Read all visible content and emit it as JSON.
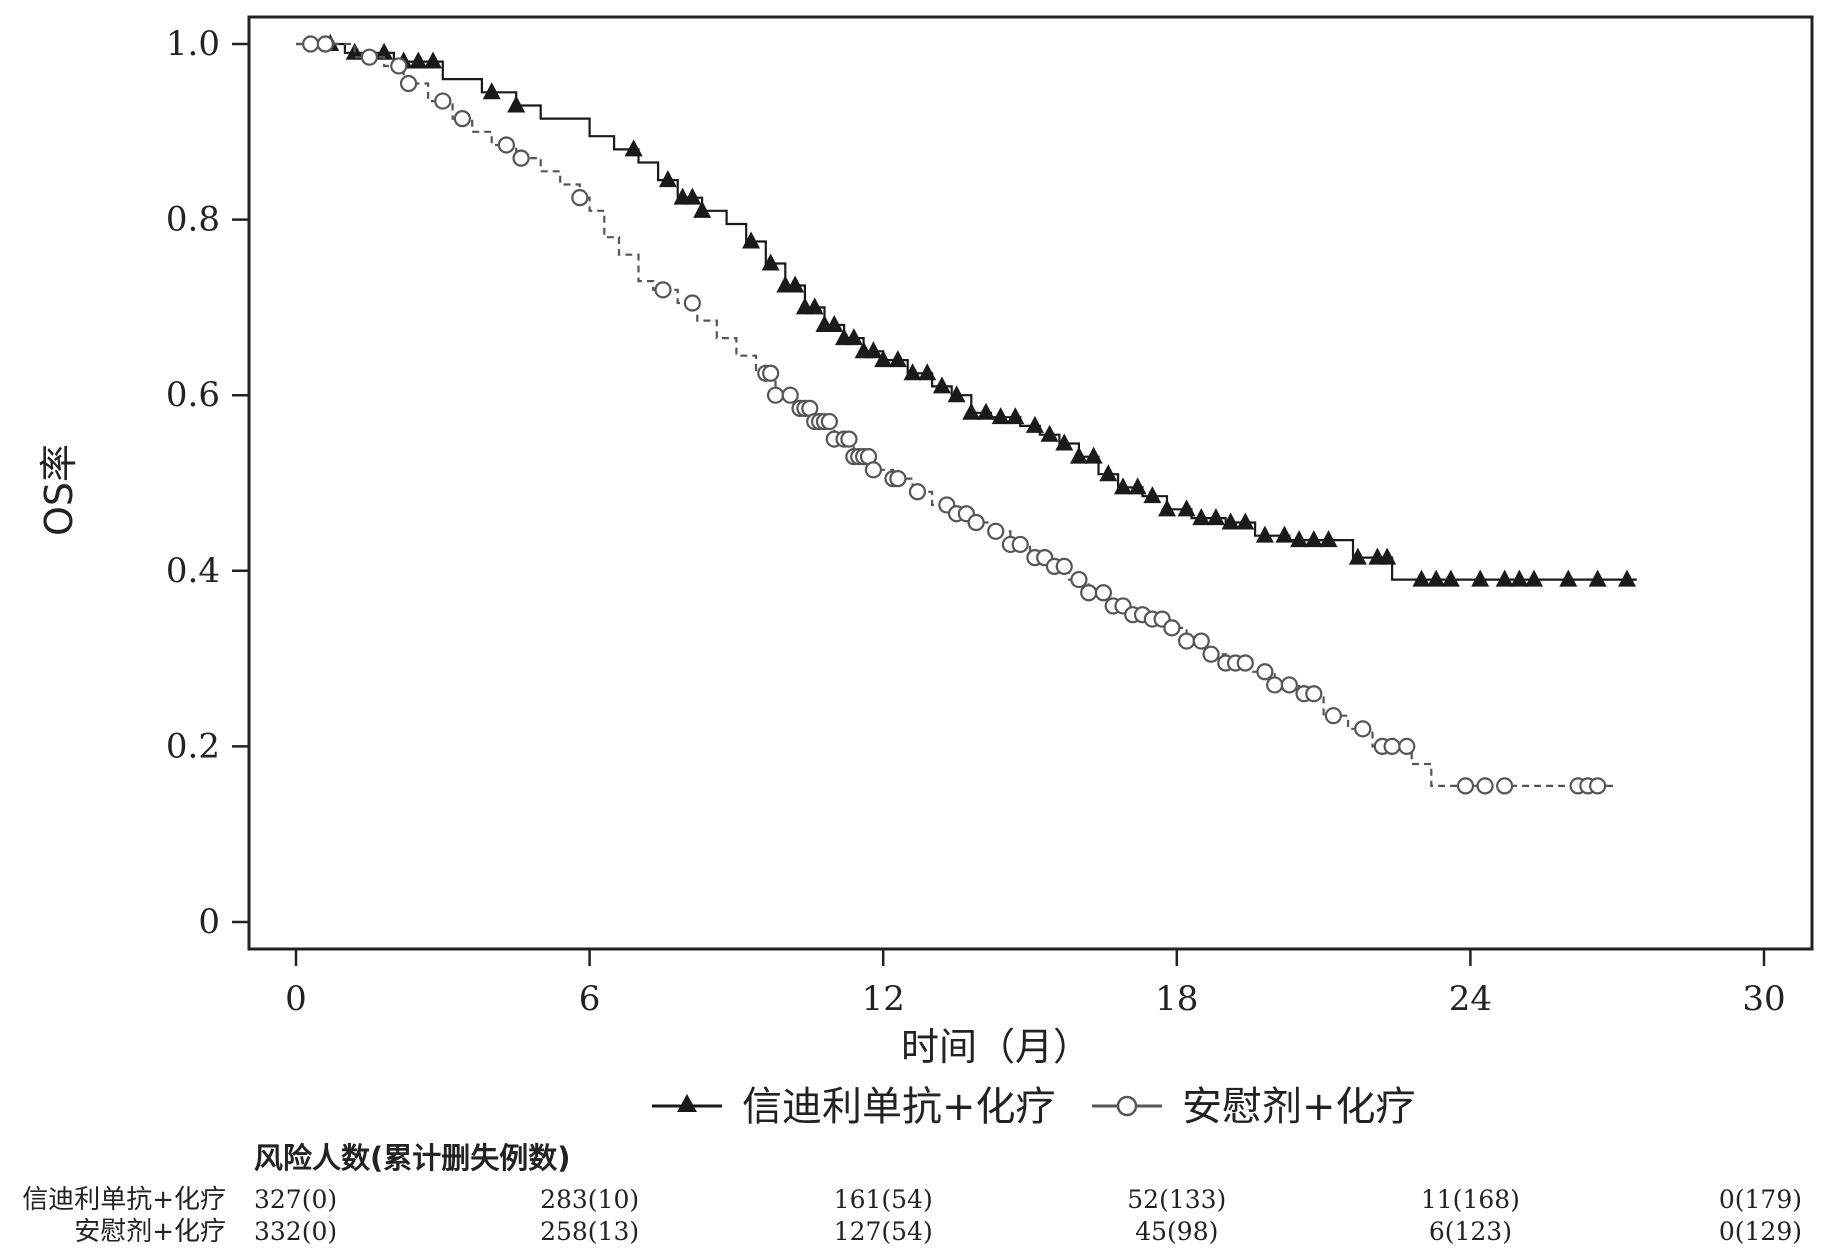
{
  "chart_data": {
    "type": "line",
    "ylabel": "OS率",
    "xlabel": "时间（月）",
    "xlim": [
      0,
      30
    ],
    "ylim": [
      0,
      1.0
    ],
    "x_ticks": [
      0,
      6,
      12,
      18,
      24,
      30
    ],
    "x_tick_labels": [
      "0",
      "6",
      "12",
      "18",
      "24",
      "30"
    ],
    "y_ticks": [
      0,
      0.2,
      0.4,
      0.6,
      0.8,
      1.0
    ],
    "y_tick_labels": [
      "0",
      "0.2",
      "0.4",
      "0.6",
      "0.8",
      "1.0"
    ],
    "grid": false,
    "legend_position": "bottom",
    "series": [
      {
        "name": "信迪利单抗+化疗",
        "color": "#1a1a1a",
        "line_style": "solid",
        "marker": "filled-triangle",
        "steps": [
          [
            0,
            1.0
          ],
          [
            1.0,
            0.99
          ],
          [
            2.0,
            0.98
          ],
          [
            3.0,
            0.96
          ],
          [
            3.8,
            0.945
          ],
          [
            4.5,
            0.93
          ],
          [
            5.0,
            0.915
          ],
          [
            6.0,
            0.895
          ],
          [
            6.5,
            0.88
          ],
          [
            7.0,
            0.865
          ],
          [
            7.4,
            0.845
          ],
          [
            7.8,
            0.825
          ],
          [
            8.3,
            0.81
          ],
          [
            8.8,
            0.795
          ],
          [
            9.2,
            0.775
          ],
          [
            9.6,
            0.75
          ],
          [
            10.0,
            0.725
          ],
          [
            10.4,
            0.7
          ],
          [
            10.8,
            0.68
          ],
          [
            11.2,
            0.665
          ],
          [
            11.6,
            0.65
          ],
          [
            12.0,
            0.64
          ],
          [
            12.5,
            0.625
          ],
          [
            13.0,
            0.61
          ],
          [
            13.4,
            0.6
          ],
          [
            13.8,
            0.58
          ],
          [
            14.2,
            0.575
          ],
          [
            14.8,
            0.565
          ],
          [
            15.2,
            0.555
          ],
          [
            15.6,
            0.545
          ],
          [
            16.0,
            0.53
          ],
          [
            16.4,
            0.51
          ],
          [
            16.8,
            0.495
          ],
          [
            17.3,
            0.485
          ],
          [
            17.8,
            0.47
          ],
          [
            18.3,
            0.46
          ],
          [
            19.0,
            0.455
          ],
          [
            19.6,
            0.44
          ],
          [
            20.3,
            0.435
          ],
          [
            21.6,
            0.415
          ],
          [
            22.4,
            0.39
          ],
          [
            27.4,
            0.39
          ]
        ],
        "censor_x": [
          0.7,
          1.2,
          1.8,
          2.2,
          2.5,
          2.8,
          4.0,
          4.5,
          6.9,
          7.6,
          7.9,
          8.1,
          8.3,
          9.3,
          9.7,
          10.0,
          10.2,
          10.4,
          10.6,
          10.8,
          11.0,
          11.2,
          11.4,
          11.6,
          11.8,
          12.0,
          12.3,
          12.6,
          12.9,
          13.2,
          13.5,
          13.8,
          14.1,
          14.4,
          14.7,
          15.1,
          15.4,
          15.7,
          16.0,
          16.3,
          16.6,
          16.9,
          17.2,
          17.5,
          17.8,
          18.2,
          18.5,
          18.8,
          19.1,
          19.4,
          19.8,
          20.2,
          20.5,
          20.8,
          21.1,
          21.7,
          22.1,
          22.3,
          23.0,
          23.3,
          23.6,
          24.2,
          24.7,
          25.0,
          25.3,
          26.0,
          26.6,
          27.2
        ]
      },
      {
        "name": "安慰剂+化疗",
        "color": "#555555",
        "line_style": "dashed",
        "marker": "open-circle",
        "steps": [
          [
            0,
            1.0
          ],
          [
            1.2,
            0.985
          ],
          [
            1.8,
            0.975
          ],
          [
            2.2,
            0.955
          ],
          [
            2.7,
            0.935
          ],
          [
            3.2,
            0.915
          ],
          [
            3.6,
            0.9
          ],
          [
            4.0,
            0.885
          ],
          [
            4.5,
            0.87
          ],
          [
            5.0,
            0.855
          ],
          [
            5.4,
            0.84
          ],
          [
            5.8,
            0.825
          ],
          [
            6.0,
            0.81
          ],
          [
            6.3,
            0.78
          ],
          [
            6.6,
            0.76
          ],
          [
            7.0,
            0.73
          ],
          [
            7.3,
            0.72
          ],
          [
            7.8,
            0.705
          ],
          [
            8.2,
            0.685
          ],
          [
            8.6,
            0.665
          ],
          [
            9.0,
            0.645
          ],
          [
            9.4,
            0.625
          ],
          [
            9.8,
            0.6
          ],
          [
            10.2,
            0.585
          ],
          [
            10.6,
            0.57
          ],
          [
            11.0,
            0.55
          ],
          [
            11.4,
            0.53
          ],
          [
            11.8,
            0.515
          ],
          [
            12.2,
            0.505
          ],
          [
            12.6,
            0.49
          ],
          [
            13.0,
            0.475
          ],
          [
            13.4,
            0.465
          ],
          [
            13.8,
            0.455
          ],
          [
            14.2,
            0.445
          ],
          [
            14.6,
            0.43
          ],
          [
            15.0,
            0.415
          ],
          [
            15.4,
            0.405
          ],
          [
            15.8,
            0.39
          ],
          [
            16.2,
            0.375
          ],
          [
            16.6,
            0.36
          ],
          [
            17.0,
            0.35
          ],
          [
            17.4,
            0.345
          ],
          [
            17.8,
            0.335
          ],
          [
            18.2,
            0.32
          ],
          [
            18.6,
            0.305
          ],
          [
            19.0,
            0.295
          ],
          [
            19.5,
            0.285
          ],
          [
            20.0,
            0.27
          ],
          [
            20.5,
            0.26
          ],
          [
            21.0,
            0.235
          ],
          [
            21.5,
            0.22
          ],
          [
            22.0,
            0.2
          ],
          [
            22.8,
            0.18
          ],
          [
            23.2,
            0.155
          ],
          [
            27.0,
            0.155
          ]
        ],
        "censor_x": [
          0.3,
          0.6,
          1.5,
          2.1,
          2.3,
          3.0,
          3.4,
          4.3,
          4.6,
          5.8,
          7.5,
          8.1,
          9.6,
          9.7,
          9.8,
          10.1,
          10.3,
          10.4,
          10.5,
          10.6,
          10.7,
          10.8,
          10.9,
          11.0,
          11.2,
          11.3,
          11.4,
          11.5,
          11.6,
          11.7,
          11.8,
          12.2,
          12.3,
          12.7,
          13.3,
          13.5,
          13.7,
          13.9,
          14.3,
          14.6,
          14.8,
          15.1,
          15.3,
          15.5,
          15.7,
          16.0,
          16.2,
          16.5,
          16.7,
          16.9,
          17.1,
          17.3,
          17.5,
          17.7,
          17.9,
          18.2,
          18.5,
          18.7,
          19.0,
          19.2,
          19.4,
          19.8,
          20.0,
          20.3,
          20.6,
          20.8,
          21.2,
          21.8,
          22.2,
          22.4,
          22.7,
          23.9,
          24.3,
          24.7,
          26.2,
          26.4,
          26.6
        ]
      }
    ]
  },
  "risk_table": {
    "title": "风险人数(累计删失例数)",
    "rows": [
      {
        "name": "信迪利单抗+化疗",
        "values": [
          "327(0)",
          "283(10)",
          "161(54)",
          "52(133)",
          "11(168)",
          "0(179)"
        ]
      },
      {
        "name": "安慰剂+化疗",
        "values": [
          "332(0)",
          "258(13)",
          "127(54)",
          "45(98)",
          "6(123)",
          "0(129)"
        ]
      }
    ]
  }
}
